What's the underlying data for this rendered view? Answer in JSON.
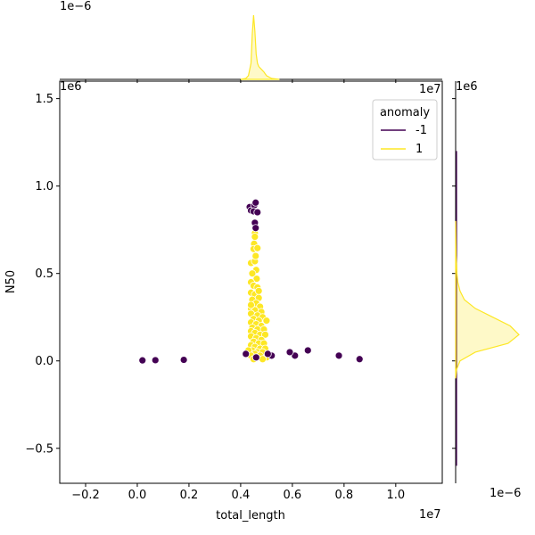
{
  "chart_data": {
    "type": "scatter",
    "xlabel": "total_length",
    "ylabel": "N50",
    "x_offset_label": "1e7",
    "y_offset_label": "1e6",
    "top_marginal_offset_label": "1e−6",
    "right_marginal_offset_label": "1e−6",
    "xlim": [
      -0.3,
      1.18
    ],
    "ylim": [
      -0.7,
      1.6
    ],
    "x_ticks": [
      -0.2,
      0.0,
      0.2,
      0.4,
      0.6,
      0.8,
      1.0
    ],
    "x_tick_labels": [
      "−0.2",
      "0.0",
      "0.2",
      "0.4",
      "0.6",
      "0.8",
      "1.0"
    ],
    "y_ticks": [
      -0.5,
      0.0,
      0.5,
      1.0,
      1.5
    ],
    "y_tick_labels": [
      "−0.5",
      "0.0",
      "0.5",
      "1.0",
      "1.5"
    ],
    "legend": {
      "title": "anomaly",
      "placement": "top-right",
      "entries": [
        {
          "label": "-1",
          "color": "#440154"
        },
        {
          "label": "1",
          "color": "#fde725"
        }
      ]
    },
    "series": [
      {
        "name": "-1",
        "color": "#440154",
        "points": [
          {
            "x": 0.02,
            "y": 0.003
          },
          {
            "x": 0.07,
            "y": 0.004
          },
          {
            "x": 0.18,
            "y": 0.006
          },
          {
            "x": 0.42,
            "y": 0.04
          },
          {
            "x": 0.61,
            "y": 0.03
          },
          {
            "x": 0.66,
            "y": 0.06
          },
          {
            "x": 0.59,
            "y": 0.05
          },
          {
            "x": 0.78,
            "y": 0.03
          },
          {
            "x": 0.86,
            "y": 0.01
          },
          {
            "x": 0.435,
            "y": 0.88
          },
          {
            "x": 0.44,
            "y": 0.86
          },
          {
            "x": 0.453,
            "y": 0.89
          },
          {
            "x": 0.458,
            "y": 0.905
          },
          {
            "x": 0.45,
            "y": 0.855
          },
          {
            "x": 0.465,
            "y": 0.85
          },
          {
            "x": 0.455,
            "y": 0.79
          },
          {
            "x": 0.458,
            "y": 0.76
          },
          {
            "x": 0.46,
            "y": 0.02
          },
          {
            "x": 0.52,
            "y": 0.03
          },
          {
            "x": 0.505,
            "y": 0.04
          }
        ]
      },
      {
        "name": "1",
        "color": "#fde725",
        "points": [
          {
            "x": 0.455,
            "y": 0.73
          },
          {
            "x": 0.455,
            "y": 0.71
          },
          {
            "x": 0.452,
            "y": 0.67
          },
          {
            "x": 0.45,
            "y": 0.64
          },
          {
            "x": 0.465,
            "y": 0.645
          },
          {
            "x": 0.44,
            "y": 0.56
          },
          {
            "x": 0.455,
            "y": 0.57
          },
          {
            "x": 0.46,
            "y": 0.52
          },
          {
            "x": 0.445,
            "y": 0.5
          },
          {
            "x": 0.462,
            "y": 0.47
          },
          {
            "x": 0.44,
            "y": 0.45
          },
          {
            "x": 0.45,
            "y": 0.43
          },
          {
            "x": 0.465,
            "y": 0.42
          },
          {
            "x": 0.44,
            "y": 0.39
          },
          {
            "x": 0.455,
            "y": 0.38
          },
          {
            "x": 0.47,
            "y": 0.36
          },
          {
            "x": 0.445,
            "y": 0.35
          },
          {
            "x": 0.46,
            "y": 0.33
          },
          {
            "x": 0.475,
            "y": 0.31
          },
          {
            "x": 0.44,
            "y": 0.3
          },
          {
            "x": 0.455,
            "y": 0.29
          },
          {
            "x": 0.48,
            "y": 0.28
          },
          {
            "x": 0.44,
            "y": 0.27
          },
          {
            "x": 0.465,
            "y": 0.26
          },
          {
            "x": 0.485,
            "y": 0.25
          },
          {
            "x": 0.45,
            "y": 0.24
          },
          {
            "x": 0.47,
            "y": 0.23
          },
          {
            "x": 0.5,
            "y": 0.23
          },
          {
            "x": 0.44,
            "y": 0.22
          },
          {
            "x": 0.46,
            "y": 0.21
          },
          {
            "x": 0.48,
            "y": 0.2
          },
          {
            "x": 0.445,
            "y": 0.19
          },
          {
            "x": 0.465,
            "y": 0.18
          },
          {
            "x": 0.49,
            "y": 0.18
          },
          {
            "x": 0.44,
            "y": 0.17
          },
          {
            "x": 0.455,
            "y": 0.16
          },
          {
            "x": 0.475,
            "y": 0.15
          },
          {
            "x": 0.495,
            "y": 0.15
          },
          {
            "x": 0.44,
            "y": 0.14
          },
          {
            "x": 0.46,
            "y": 0.13
          },
          {
            "x": 0.48,
            "y": 0.12
          },
          {
            "x": 0.45,
            "y": 0.11
          },
          {
            "x": 0.47,
            "y": 0.1
          },
          {
            "x": 0.49,
            "y": 0.1
          },
          {
            "x": 0.44,
            "y": 0.09
          },
          {
            "x": 0.455,
            "y": 0.08
          },
          {
            "x": 0.475,
            "y": 0.07
          },
          {
            "x": 0.495,
            "y": 0.07
          },
          {
            "x": 0.445,
            "y": 0.06
          },
          {
            "x": 0.465,
            "y": 0.05
          },
          {
            "x": 0.485,
            "y": 0.05
          },
          {
            "x": 0.43,
            "y": 0.06
          },
          {
            "x": 0.455,
            "y": 0.04
          },
          {
            "x": 0.475,
            "y": 0.03
          },
          {
            "x": 0.44,
            "y": 0.03
          },
          {
            "x": 0.46,
            "y": 0.02
          },
          {
            "x": 0.5,
            "y": 0.02
          },
          {
            "x": 0.485,
            "y": 0.01
          },
          {
            "x": 0.45,
            "y": 0.01
          },
          {
            "x": 0.44,
            "y": 0.32
          },
          {
            "x": 0.47,
            "y": 0.4
          },
          {
            "x": 0.458,
            "y": 0.6
          }
        ]
      }
    ],
    "marginal_x_kde": {
      "color": "#fde725",
      "x": [
        0.4,
        0.42,
        0.43,
        0.44,
        0.445,
        0.45,
        0.455,
        0.46,
        0.465,
        0.47,
        0.48,
        0.49,
        0.5,
        0.52,
        0.55
      ],
      "density": [
        0.0,
        0.02,
        0.08,
        0.35,
        1.0,
        1.4,
        1.05,
        0.55,
        0.35,
        0.28,
        0.22,
        0.16,
        0.08,
        0.02,
        0.0
      ]
    },
    "marginal_y_kde": {
      "color": "#fde725",
      "y": [
        -0.1,
        -0.05,
        0.0,
        0.05,
        0.1,
        0.15,
        0.2,
        0.25,
        0.3,
        0.35,
        0.4,
        0.45,
        0.5,
        0.6,
        0.7,
        0.8
      ],
      "density": [
        0.0,
        0.02,
        0.1,
        0.45,
        1.2,
        1.45,
        1.25,
        0.85,
        0.45,
        0.2,
        0.1,
        0.05,
        0.03,
        0.01,
        0.005,
        0.0
      ]
    }
  }
}
